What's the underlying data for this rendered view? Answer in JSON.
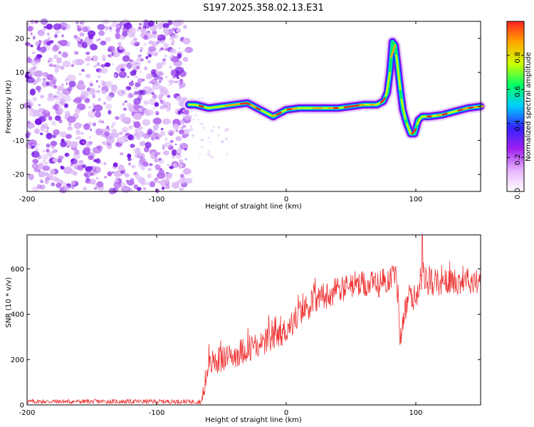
{
  "title": "S197.2025.358.02.13.E31",
  "colors": {
    "noise": "#8a2be2",
    "snr_line": "#ee3333",
    "colormap": [
      "#ffffff",
      "#e6b3ff",
      "#a020f0",
      "#3322ff",
      "#00ccff",
      "#00ff66",
      "#ccff00",
      "#ffaa00",
      "#ff2020"
    ]
  },
  "chart_data": [
    {
      "type": "heatmap",
      "id": "spectrogram",
      "xlabel": "Height of straight line (km)",
      "ylabel": "Frequency (Hz)",
      "xlim": [
        -200,
        150
      ],
      "ylim": [
        -25,
        25
      ],
      "xticks": [
        -200,
        -100,
        0,
        100
      ],
      "yticks": [
        -20,
        -10,
        0,
        10,
        20
      ],
      "noise_region_x": [
        -200,
        -75
      ],
      "ridge": {
        "x": [
          -75,
          -70,
          -60,
          -50,
          -40,
          -30,
          -20,
          -10,
          0,
          10,
          20,
          30,
          40,
          50,
          60,
          70,
          75,
          78,
          80,
          82,
          84,
          86,
          88,
          90,
          93,
          96,
          99,
          102,
          105,
          110,
          120,
          130,
          140,
          150
        ],
        "y": [
          0.5,
          0.5,
          -0.5,
          0,
          0.5,
          1,
          -1,
          -3,
          -1,
          -0.5,
          -0.5,
          -0.5,
          -0.5,
          0,
          0.5,
          0.5,
          1.5,
          4,
          10,
          19,
          18,
          12,
          5,
          -1,
          -5,
          -8,
          -8,
          -4,
          -3,
          -3,
          -2.5,
          -1.5,
          -0.5,
          0
        ]
      },
      "colorbar": {
        "label": "Normalized spectral amplitude",
        "range": [
          0,
          1
        ],
        "ticks": [
          "0.0",
          "0.2",
          "0.4",
          "0.6",
          "0.8"
        ]
      }
    },
    {
      "type": "line",
      "id": "snr",
      "xlabel": "Height of straight line (km)",
      "ylabel": "SNR (10 * v/v)",
      "xlim": [
        -200,
        150
      ],
      "ylim": [
        0,
        750
      ],
      "xticks": [
        -200,
        -100,
        0,
        100
      ],
      "yticks": [
        0,
        200,
        400,
        600
      ],
      "trend": {
        "x": [
          -200,
          -120,
          -65,
          -60,
          -50,
          -40,
          -30,
          -20,
          -10,
          0,
          10,
          20,
          30,
          40,
          50,
          60,
          70,
          80,
          85,
          87,
          88,
          90,
          95,
          100,
          103,
          105,
          110,
          120,
          130,
          140,
          150
        ],
        "y": [
          15,
          15,
          15,
          180,
          200,
          220,
          250,
          270,
          290,
          330,
          400,
          450,
          480,
          510,
          520,
          530,
          530,
          560,
          580,
          420,
          270,
          380,
          480,
          470,
          550,
          570,
          540,
          540,
          545,
          550,
          550
        ]
      },
      "noise_amplitude": [
        10,
        10,
        60
      ],
      "spike": {
        "x": 105,
        "y": 750
      }
    }
  ]
}
